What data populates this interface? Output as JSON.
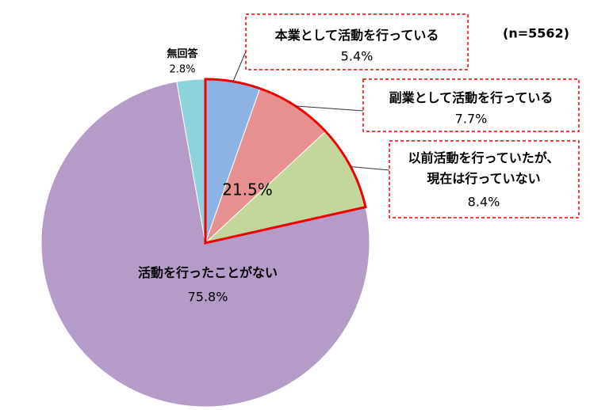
{
  "chart_data": {
    "type": "pie",
    "subtitle": "(n=5562)",
    "annotation": "21.5%",
    "categories": [
      "本業として活動を行っている",
      "副業として活動を行っている",
      "以前活動を行っていたが、\n現在は行っていない",
      "活動を行ったことがない",
      "無回答"
    ],
    "values": [
      5.4,
      7.7,
      8.4,
      75.8,
      2.8
    ],
    "value_labels": [
      "5.4%",
      "7.7%",
      "8.4%",
      "75.8%",
      "2.8%"
    ],
    "colors": [
      "#8db3e2",
      "#e6908f",
      "#c3d69b",
      "#b49bc8",
      "#8dd3dc"
    ]
  }
}
